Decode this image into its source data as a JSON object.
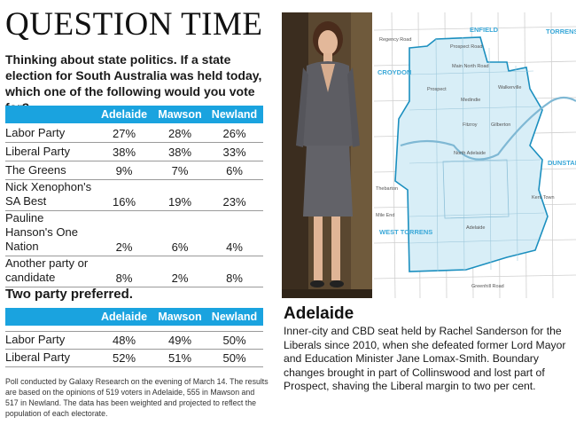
{
  "title": "QUESTION TIME",
  "question": "Thinking about state politics. If a state election for South Australia was held today, which one of the following would you vote for?",
  "columns": [
    "Adelaide",
    "Mawson",
    "Newland"
  ],
  "primary_vote": [
    {
      "label": "Labor Party",
      "values": [
        "27%",
        "28%",
        "26%"
      ]
    },
    {
      "label": "Liberal Party",
      "values": [
        "38%",
        "38%",
        "33%"
      ]
    },
    {
      "label": "The Greens",
      "values": [
        "9%",
        "7%",
        "6%"
      ]
    },
    {
      "label": "Nick Xenophon's SA Best",
      "values": [
        "16%",
        "19%",
        "23%"
      ]
    },
    {
      "label": "Pauline Hanson's One Nation",
      "values": [
        "2%",
        "6%",
        "4%"
      ]
    },
    {
      "label": "Another party or candidate",
      "values": [
        "8%",
        "2%",
        "8%"
      ]
    }
  ],
  "tpp_heading": "Two party preferred.",
  "tpp": [
    {
      "label": "Labor Party",
      "values": [
        "48%",
        "49%",
        "50%"
      ]
    },
    {
      "label": "Liberal Party",
      "values": [
        "52%",
        "51%",
        "50%"
      ]
    }
  ],
  "footnote": "Poll conducted by Galaxy Research on the evening of March 14. The results are based on the opinions of 519 voters in Adelaide, 555 in Mawson and 517 in Newland. The data has been weighted and projected to reflect the population of each electorate.",
  "map": {
    "labels": {
      "enfield": "ENFIELD",
      "torrens": "TORRENS",
      "croydon": "CROYDON",
      "dunstan": "DUNSTAN",
      "west_torrens": "WEST TORRENS",
      "north_adelaide": "North Adelaide",
      "adelaide": "Adelaide",
      "prospect": "Prospect",
      "walkerville": "Walkerville",
      "medindie": "Medindie",
      "gilberton": "Gilberton",
      "thebarton": "Thebarton",
      "mile_end": "Mile End",
      "kent_town": "Kent Town",
      "prospect_road": "Prospect Road",
      "regency_road": "Regency Road",
      "main_north_road": "Main North Road",
      "fitzroy": "Fitzroy",
      "greenhill_road": "Greenhill Road"
    },
    "colors": {
      "electorate_fill": "#d8eef7",
      "electorate_border": "#1b8fbf",
      "road": "#c8c8c8",
      "region_label": "#3aa8d8"
    }
  },
  "seat_heading": "Adelaide",
  "seat_description": "Inner-city and CBD seat held by Rachel Sanderson for the Liberals since 2010, when she defeated former Lord Mayor and Education Minister Jane Lomax-Smith. Boundary changes brought in part of Collinswood and lost part of Prospect, shaving the Liberal margin to two per cent.",
  "colors": {
    "table_header": "#1aa3df",
    "table_header_text": "#ffffff"
  }
}
